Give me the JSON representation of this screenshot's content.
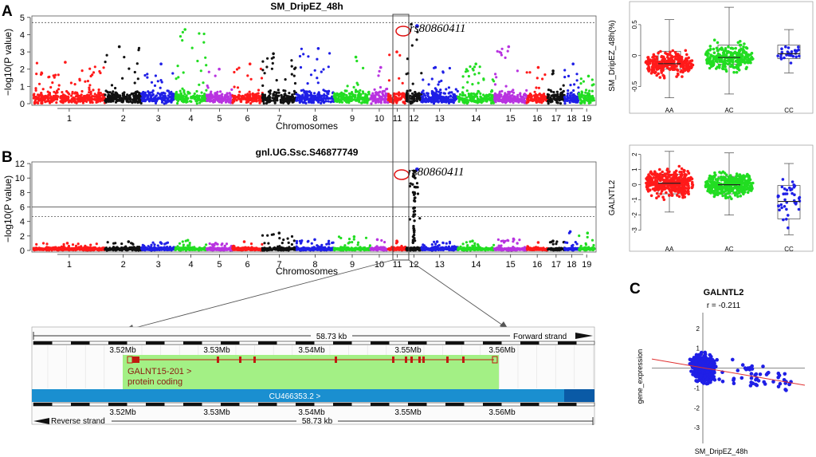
{
  "panel_labels": {
    "a": "A",
    "b": "B",
    "c": "C"
  },
  "colors": {
    "red": "#ff1a1a",
    "black": "#111111",
    "blue": "#1f1fe6",
    "green": "#22dd22",
    "purple": "#b833e0",
    "gene_bar": "#9ef07a",
    "contig_bar": "#1a8fd0",
    "exon": "#c01a10"
  },
  "chart_data": [
    {
      "id": "manhattanA",
      "type": "scatter",
      "title": "SM_DripEZ_48h",
      "xlabel": "Chromosomes",
      "ylabel": "−log10(P value)",
      "ylim": [
        0,
        5.5
      ],
      "yticks": [
        0,
        1,
        2,
        3,
        4,
        5
      ],
      "threshold_lines": [
        4.7
      ],
      "categories": [
        "1",
        "2",
        "3",
        "4",
        "5",
        "6",
        "7",
        "8",
        "9",
        "10",
        "11",
        "12",
        "13",
        "14",
        "15",
        "16",
        "17",
        "18",
        "19"
      ],
      "chrom_peak_values": [
        2.4,
        3.3,
        2.3,
        4.3,
        2.0,
        2.3,
        2.9,
        3.2,
        2.7,
        2.1,
        3.0,
        4.6,
        2.1,
        2.3,
        3.3,
        2.1,
        1.9,
        2.3,
        1.6
      ],
      "annotation": {
        "label": "rs80860411",
        "chrom": "12",
        "value": 4.5
      }
    },
    {
      "id": "manhattanB",
      "type": "scatter",
      "title": "gnl.UG.Ssc.S46877749",
      "xlabel": "Chromosomes",
      "ylabel": "−log10(P value)",
      "ylim": [
        0,
        13
      ],
      "yticks": [
        0,
        2,
        4,
        6,
        8,
        10,
        12
      ],
      "threshold_lines": [
        6.0,
        4.7
      ],
      "categories": [
        "1",
        "2",
        "3",
        "4",
        "5",
        "6",
        "7",
        "8",
        "9",
        "10",
        "11",
        "12",
        "13",
        "14",
        "15",
        "16",
        "17",
        "18",
        "19"
      ],
      "chrom_peak_values": [
        1.0,
        1.2,
        1.1,
        1.4,
        1.0,
        1.2,
        2.4,
        1.5,
        1.9,
        1.5,
        1.3,
        11.0,
        1.2,
        1.3,
        1.6,
        1.1,
        1.3,
        2.6,
        2.4
      ],
      "annotation": {
        "label": "rs80860411",
        "chrom": "12",
        "value": 11.2
      }
    },
    {
      "id": "boxA",
      "type": "scatter",
      "ylabel": "SM_DripEZ_48h(%)",
      "categories": [
        "AA",
        "AC",
        "CC"
      ],
      "ylim": [
        -0.75,
        0.82
      ],
      "yticks": [
        -0.5,
        0.0,
        0.5
      ],
      "series": [
        {
          "name": "AA",
          "n": 260,
          "q1": -0.22,
          "median": -0.13,
          "q3": 0.07,
          "whisker_low": -0.68,
          "whisker_high": 0.58
        },
        {
          "name": "AC",
          "n": 260,
          "q1": -0.14,
          "median": -0.03,
          "q3": 0.17,
          "whisker_low": -0.62,
          "whisker_high": 0.78
        },
        {
          "name": "CC",
          "n": 28,
          "q1": -0.05,
          "median": 0.03,
          "q3": 0.17,
          "whisker_low": -0.28,
          "whisker_high": 0.42
        }
      ]
    },
    {
      "id": "boxB",
      "type": "scatter",
      "ylabel": "GALNTL2",
      "categories": [
        "AA",
        "AC",
        "CC"
      ],
      "ylim": [
        -3.7,
        2.4
      ],
      "yticks": [
        -3,
        -2,
        -1,
        0,
        1,
        2
      ],
      "series": [
        {
          "name": "AA",
          "n": 380,
          "q1": -0.6,
          "median": 0.1,
          "q3": 0.7,
          "whisker_low": -1.8,
          "whisker_high": 2.2
        },
        {
          "name": "AC",
          "n": 380,
          "q1": -0.6,
          "median": 0.0,
          "q3": 0.55,
          "whisker_low": -2.0,
          "whisker_high": 2.1
        },
        {
          "name": "CC",
          "n": 40,
          "q1": -2.25,
          "median": -1.1,
          "q3": -0.05,
          "whisker_low": -3.3,
          "whisker_high": 1.4
        }
      ]
    },
    {
      "id": "scatterC",
      "type": "scatter",
      "title": "GALNTL2",
      "subtitle": "r = -0.211",
      "xlabel": "SM_DripEZ_48h",
      "ylabel": "gene_expression",
      "xlim": [
        -0.8,
        1.6
      ],
      "ylim": [
        -3.8,
        2.8
      ],
      "yticks": [
        2,
        1,
        -1,
        -2,
        -3
      ],
      "n": 520,
      "regression": {
        "slope": -0.55,
        "intercept": 0.02
      }
    }
  ],
  "genome_browser": {
    "top_length": "58.73 kb",
    "forward_strand": "Forward strand",
    "reverse_strand": "Reverse strand",
    "bottom_length": "58.73 kb",
    "top_ticks": [
      "3.52Mb",
      "3.53Mb",
      "3.54Mb",
      "3.55Mb",
      "3.56Mb"
    ],
    "bottom_ticks": [
      "3.52Mb",
      "3.53Mb",
      "3.54Mb",
      "3.55Mb",
      "3.56Mb"
    ],
    "gene_name": "GALNT15-201 >",
    "gene_type": "protein coding",
    "contig": "CU466353.2 >"
  }
}
